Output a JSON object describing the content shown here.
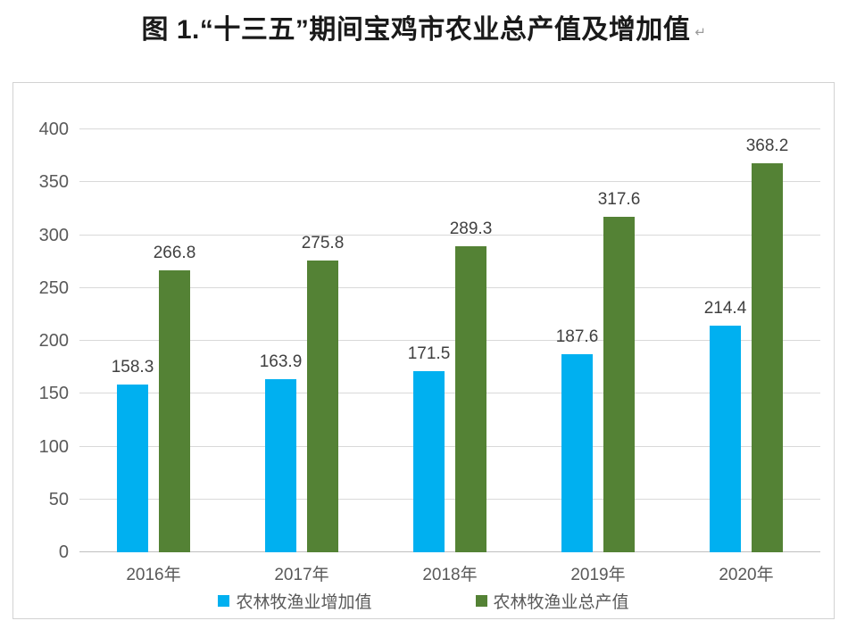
{
  "title": {
    "text": "图 1.“十三五”期间宝鸡市农业总产值及增加值",
    "paragraph_mark": "↵"
  },
  "style": {
    "grid_color": "#D9D9D9",
    "axis_line_color": "#BFBFBF",
    "tick_label_color": "#595959",
    "data_label_color": "#404040",
    "frame_border_color": "#D2D2D2",
    "title_color": "#1A1A1A",
    "legend_text_color": "#595959",
    "background": "#FFFFFF"
  },
  "chart_data": {
    "type": "bar",
    "title": "图 1.“十三五”期间宝鸡市农业总产值及增加值",
    "categories": [
      "2016年",
      "2017年",
      "2018年",
      "2019年",
      "2020年"
    ],
    "series": [
      {
        "name": "农林牧渔业增加值",
        "color": "#00B0F0",
        "values": [
          158.3,
          163.9,
          171.5,
          187.6,
          214.4
        ]
      },
      {
        "name": "农林牧渔业总产值",
        "color": "#548235",
        "values": [
          266.8,
          275.8,
          289.3,
          317.6,
          368.2
        ]
      }
    ],
    "xlabel": "",
    "ylabel": "",
    "ylim": [
      0,
      400
    ],
    "yticks": [
      0,
      50,
      100,
      150,
      200,
      250,
      300,
      350,
      400
    ],
    "grid": true,
    "data_labels": true,
    "legend_position": "bottom"
  }
}
